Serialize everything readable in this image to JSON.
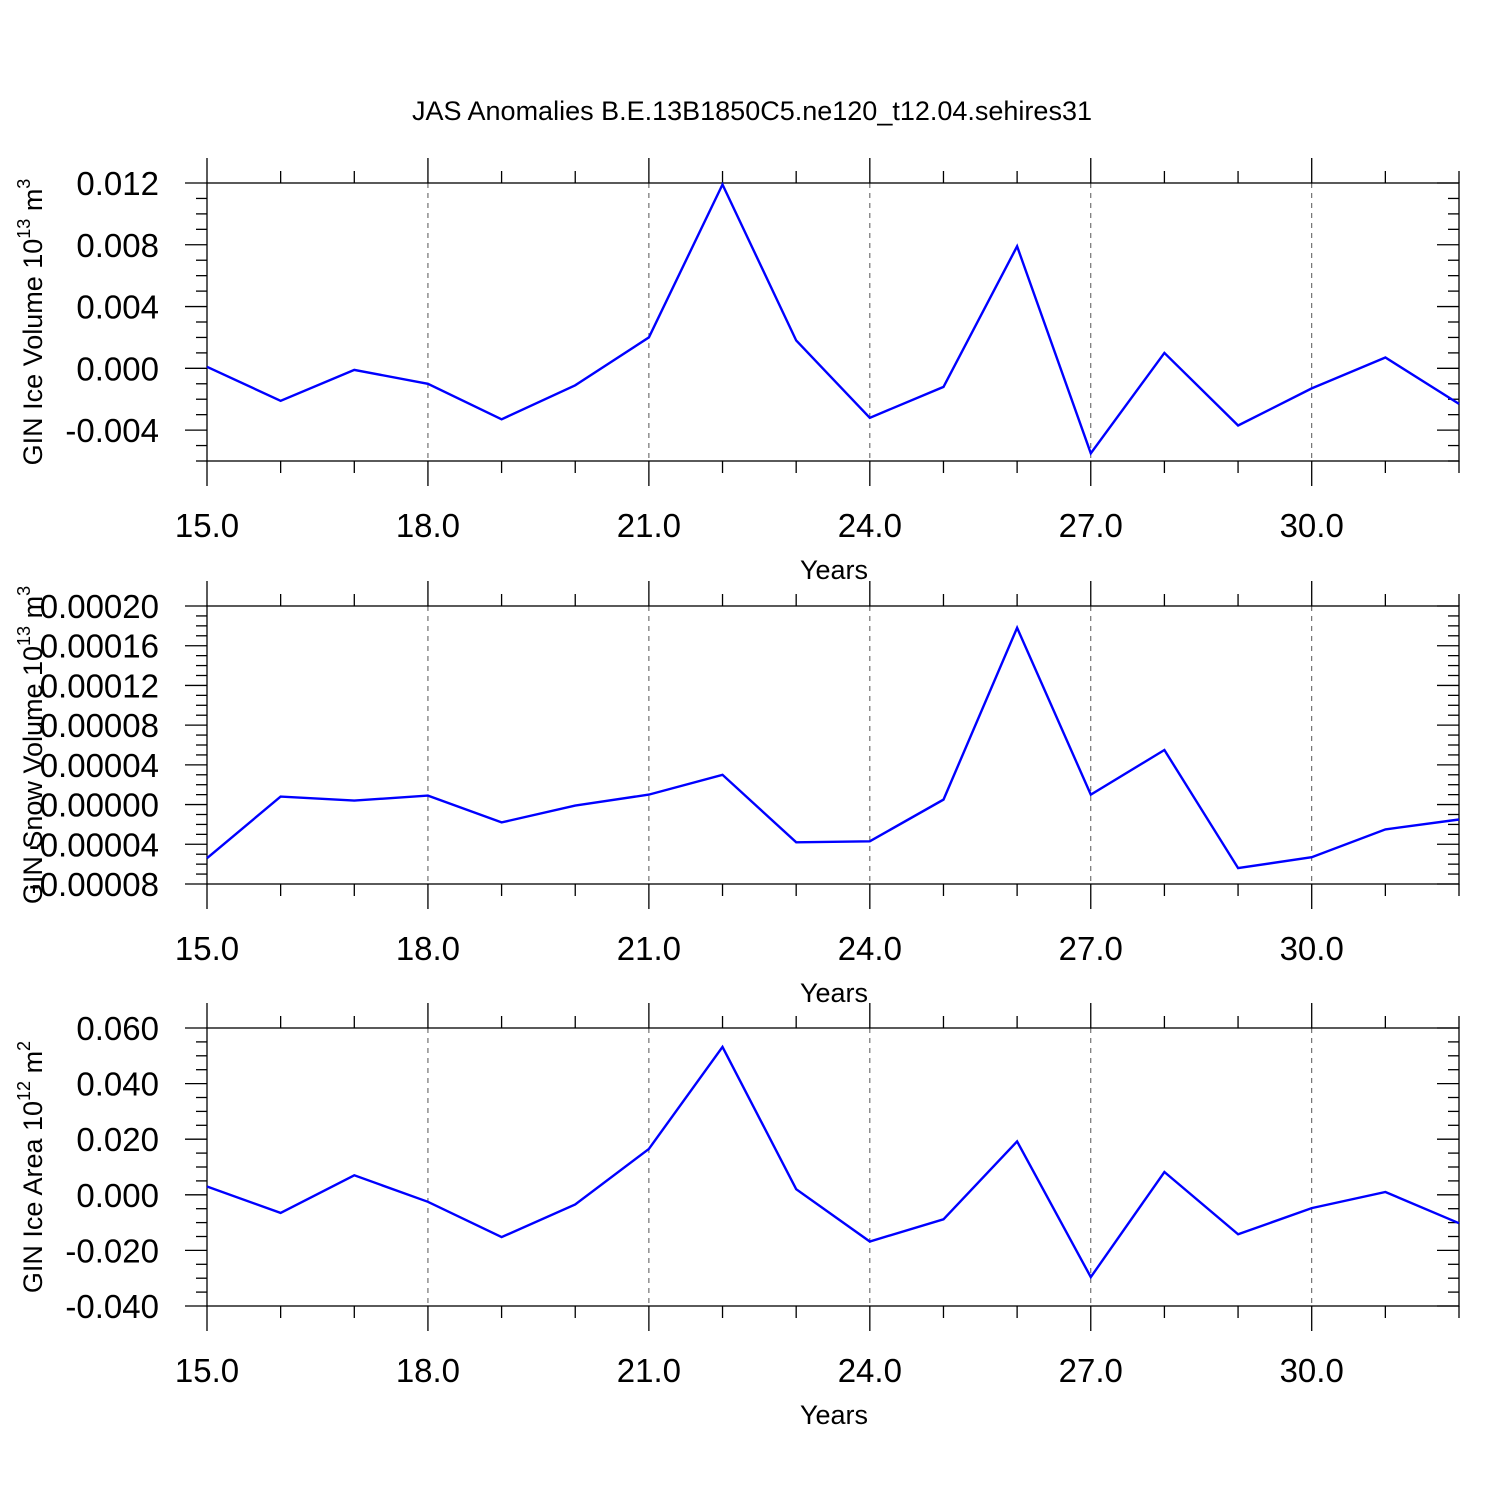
{
  "title": "JAS Anomalies B.E.13B1850C5.ne120_t12.04.sehires31",
  "chart_data": [
    {
      "type": "line",
      "xlabel": "Years",
      "ylabel": {
        "text": "GIN Ice Volume 10",
        "sup": "13",
        "unit": " m",
        "unit_sup": "3"
      },
      "x": [
        15,
        16,
        17,
        18,
        19,
        20,
        21,
        22,
        23,
        24,
        25,
        26,
        27,
        28,
        29,
        30,
        31,
        32
      ],
      "series": [
        {
          "color": "#0000ff",
          "values": [
            0.0001,
            -0.0021,
            -0.0001,
            -0.001,
            -0.0033,
            -0.0011,
            0.002,
            0.0119,
            0.0018,
            -0.0032,
            -0.0012,
            0.0079,
            -0.0055,
            0.001,
            -0.0037,
            -0.0013,
            0.0007,
            -0.0023
          ]
        }
      ],
      "xlim": [
        15,
        32
      ],
      "ylim": [
        -0.006,
        0.012
      ],
      "x_ticks": [
        15,
        18,
        21,
        24,
        27,
        30
      ],
      "x_tick_labels": [
        "15.0",
        "18.0",
        "21.0",
        "24.0",
        "27.0",
        "30.0"
      ],
      "y_ticks": [
        -0.004,
        0,
        0.004,
        0.008,
        0.012
      ],
      "y_tick_labels": [
        "-0.004",
        "0.000",
        "0.004",
        "0.008",
        "0.012"
      ],
      "y_minor_step": 0.001,
      "grid": "vertical dashed at major x ticks"
    },
    {
      "type": "line",
      "xlabel": "Years",
      "ylabel": {
        "text": "GIN Snow Volume 10",
        "sup": "13",
        "unit": " m",
        "unit_sup": "3"
      },
      "x": [
        15,
        16,
        17,
        18,
        19,
        20,
        21,
        22,
        23,
        24,
        25,
        26,
        27,
        28,
        29,
        30,
        31,
        32
      ],
      "series": [
        {
          "color": "#0000ff",
          "values": [
            -5.4e-05,
            8e-06,
            4e-06,
            9e-06,
            -1.8e-05,
            -1e-06,
            1e-05,
            3e-05,
            -3.8e-05,
            -3.7e-05,
            5e-06,
            0.000178,
            1e-05,
            5.5e-05,
            -6.4e-05,
            -5.3e-05,
            -2.5e-05,
            -1.5e-05
          ]
        }
      ],
      "xlim": [
        15,
        32
      ],
      "ylim": [
        -8e-05,
        0.0002
      ],
      "x_ticks": [
        15,
        18,
        21,
        24,
        27,
        30
      ],
      "x_tick_labels": [
        "15.0",
        "18.0",
        "21.0",
        "24.0",
        "27.0",
        "30.0"
      ],
      "y_ticks": [
        -8e-05,
        -4e-05,
        0,
        4e-05,
        8e-05,
        0.00012,
        0.00016,
        0.0002
      ],
      "y_tick_labels": [
        "-0.00008",
        "-0.00004",
        "0.00000",
        "0.00004",
        "0.00008",
        "0.00012",
        "0.00016",
        "0.00020"
      ],
      "y_minor_step": 1e-05,
      "grid": "vertical dashed at major x ticks"
    },
    {
      "type": "line",
      "xlabel": "Years",
      "ylabel": {
        "text": "GIN Ice Area 10",
        "sup": "12",
        "unit": " m",
        "unit_sup": "2"
      },
      "x": [
        15,
        16,
        17,
        18,
        19,
        20,
        21,
        22,
        23,
        24,
        25,
        26,
        27,
        28,
        29,
        30,
        31,
        32
      ],
      "series": [
        {
          "color": "#0000ff",
          "values": [
            0.003,
            -0.0065,
            0.007,
            -0.0025,
            -0.0152,
            -0.0035,
            0.0165,
            0.0532,
            0.002,
            -0.0168,
            -0.0088,
            0.0192,
            -0.0296,
            0.0082,
            -0.0142,
            -0.0048,
            0.001,
            -0.0102
          ]
        }
      ],
      "xlim": [
        15,
        32
      ],
      "ylim": [
        -0.04,
        0.06
      ],
      "x_ticks": [
        15,
        18,
        21,
        24,
        27,
        30
      ],
      "x_tick_labels": [
        "15.0",
        "18.0",
        "21.0",
        "24.0",
        "27.0",
        "30.0"
      ],
      "y_ticks": [
        -0.04,
        -0.02,
        0,
        0.02,
        0.04,
        0.06
      ],
      "y_tick_labels": [
        "-0.040",
        "-0.020",
        "0.000",
        "0.020",
        "0.040",
        "0.060"
      ],
      "y_minor_step": 0.005,
      "grid": "vertical dashed at major x ticks"
    }
  ]
}
